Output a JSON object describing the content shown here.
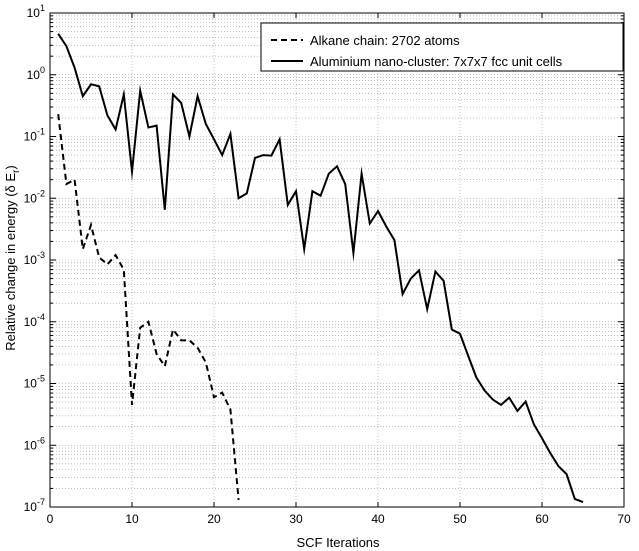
{
  "chart_data": {
    "type": "line",
    "xlabel": "SCF Iterations",
    "ylabel_main": "Relative change in energy (δ E",
    "ylabel_sub": "r",
    "ylabel_close": ")",
    "yscale": "log",
    "xlim": [
      0,
      70
    ],
    "ylim_exp": [
      -7,
      1
    ],
    "x_ticks": [
      0,
      10,
      20,
      30,
      40,
      50,
      60,
      70
    ],
    "y_tick_exponents": [
      1,
      0,
      -1,
      -2,
      -3,
      -4,
      -5,
      -6,
      -7
    ],
    "grid": true,
    "legend_position": "top-right",
    "series": [
      {
        "name": "Alkane chain: 2702 atoms",
        "style": "dashed",
        "color": "#000000",
        "x": [
          1,
          2,
          3,
          4,
          5,
          6,
          7,
          8,
          9,
          10,
          11,
          12,
          13,
          14,
          15,
          16,
          17,
          18,
          19,
          20,
          21,
          22,
          23
        ],
        "y": [
          0.23,
          0.017,
          0.02,
          0.0015,
          0.0037,
          0.0011,
          0.00085,
          0.0012,
          0.0007,
          4.5e-06,
          8e-05,
          0.0001,
          3e-05,
          1.9e-05,
          7.5e-05,
          5e-05,
          5e-05,
          3.8e-05,
          2.2e-05,
          6e-06,
          7.1e-06,
          3.8e-06,
          1.3e-07
        ]
      },
      {
        "name": "Aluminium nano-cluster: 7x7x7 fcc unit cells",
        "style": "solid",
        "color": "#000000",
        "x": [
          1,
          2,
          3,
          4,
          5,
          6,
          7,
          8,
          9,
          10,
          11,
          12,
          13,
          14,
          15,
          16,
          17,
          18,
          19,
          20,
          21,
          22,
          23,
          24,
          25,
          26,
          27,
          28,
          29,
          30,
          31,
          32,
          33,
          34,
          35,
          36,
          37,
          38,
          39,
          40,
          41,
          42,
          43,
          44,
          45,
          46,
          47,
          48,
          49,
          50,
          51,
          52,
          53,
          54,
          55,
          56,
          57,
          58,
          59,
          60,
          61,
          62,
          63,
          64,
          65
        ],
        "y": [
          4.6,
          2.9,
          1.3,
          0.45,
          0.7,
          0.65,
          0.22,
          0.13,
          0.48,
          0.027,
          0.55,
          0.14,
          0.15,
          0.0065,
          0.48,
          0.35,
          0.1,
          0.45,
          0.16,
          0.09,
          0.05,
          0.11,
          0.01,
          0.012,
          0.045,
          0.05,
          0.049,
          0.09,
          0.0078,
          0.013,
          0.0015,
          0.013,
          0.011,
          0.025,
          0.033,
          0.017,
          0.0013,
          0.025,
          0.0039,
          0.0062,
          0.0035,
          0.0021,
          0.00028,
          0.0005,
          0.00068,
          0.00016,
          0.00065,
          0.00046,
          7.5e-05,
          6.4e-05,
          2.8e-05,
          1.25e-05,
          7.7e-06,
          5.5e-06,
          4.5e-06,
          5.9e-06,
          3.6e-06,
          5.1e-06,
          2.2e-06,
          1.3e-06,
          7.5e-07,
          4.6e-07,
          3.4e-07,
          1.35e-07,
          1.2e-07
        ]
      }
    ]
  }
}
